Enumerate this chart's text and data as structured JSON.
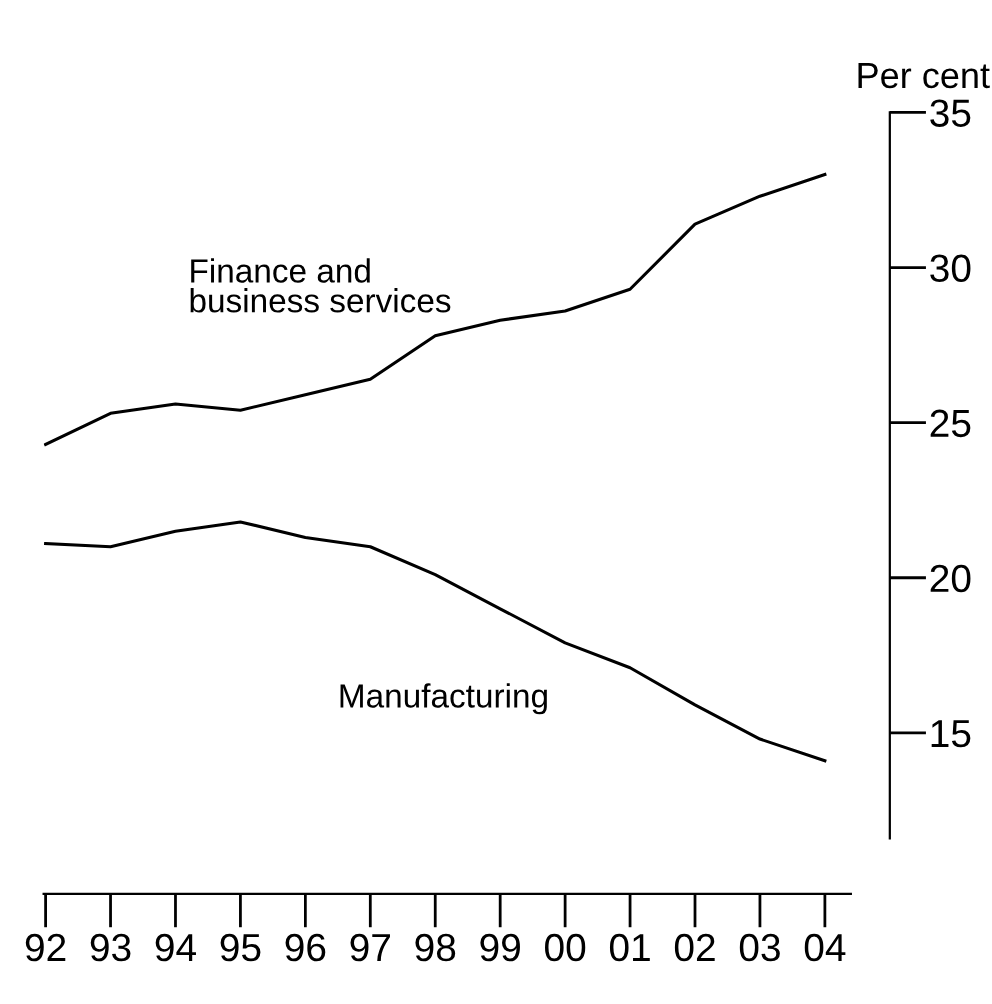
{
  "chart_data": {
    "type": "line",
    "ylabel": "Per cent",
    "categories": [
      "92",
      "93",
      "94",
      "95",
      "96",
      "97",
      "98",
      "99",
      "00",
      "01",
      "02",
      "03",
      "04"
    ],
    "series": [
      {
        "name": "Finance and\nbusiness services",
        "color": "#000000",
        "values": [
          24.3,
          25.3,
          25.6,
          25.4,
          25.9,
          26.4,
          27.8,
          28.3,
          28.6,
          29.3,
          31.4,
          32.3,
          33.0
        ]
      },
      {
        "name": "Manufacturing",
        "color": "#000000",
        "values": [
          21.1,
          21.0,
          21.5,
          21.8,
          21.3,
          21.0,
          20.1,
          19.0,
          17.9,
          17.1,
          15.9,
          14.8,
          14.1
        ]
      }
    ],
    "ylim": [
      11.6,
      35
    ],
    "yticks": [
      15,
      20,
      25,
      30,
      35
    ],
    "grid": false,
    "legend": false,
    "marker": "none",
    "line_style": "solid"
  }
}
